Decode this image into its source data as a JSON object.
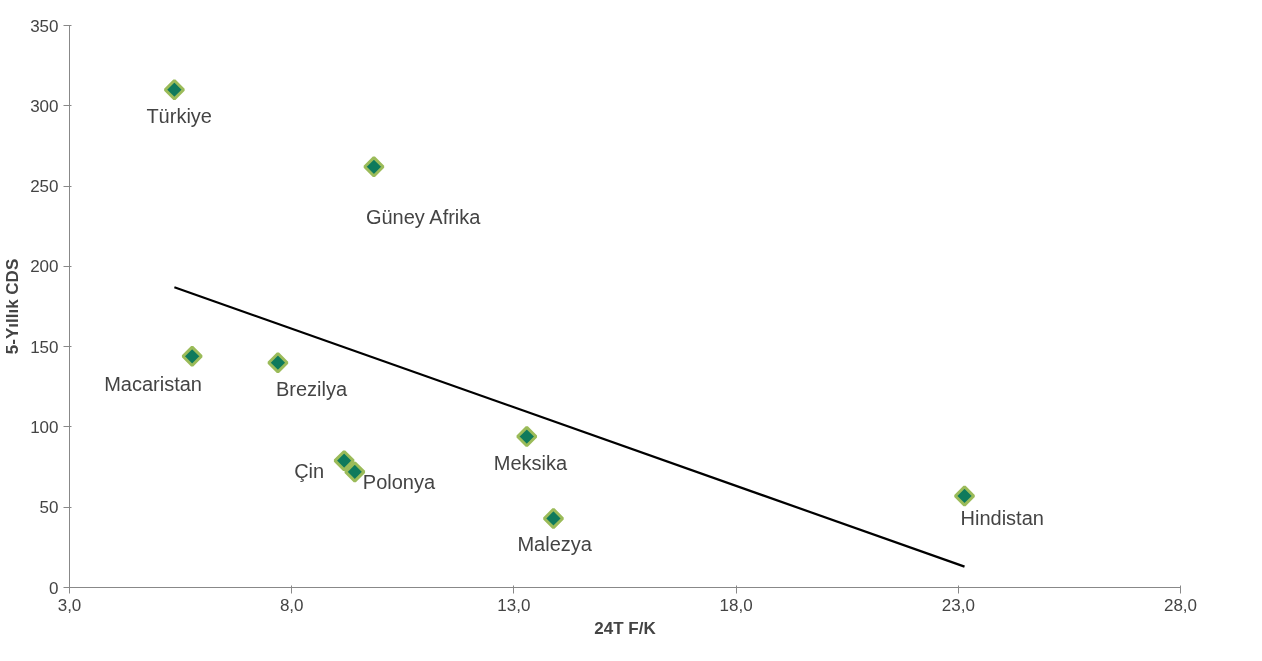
{
  "chart_data": {
    "type": "scatter",
    "xlabel": "24T F/K",
    "ylabel": "5-Yıllık CDS",
    "series": [
      {
        "marker": "diamond",
        "color": "#0f7a5c",
        "x": [
          5.36,
          9.85,
          5.76,
          7.69,
          9.18,
          9.42,
          13.29,
          13.89,
          23.14
        ],
        "values": [
          310,
          262,
          144,
          140,
          79,
          72,
          94,
          43,
          57
        ]
      },
      {
        "type": "line",
        "color": "#000000",
        "x": [
          5.36,
          23.14
        ],
        "values": [
          187,
          13
        ]
      }
    ],
    "annotations": [
      {
        "text": "Türkiye",
        "x": 5.36,
        "y": 310
      },
      {
        "text": "Güney Afrika",
        "x": 9.85,
        "y": 262
      },
      {
        "text": "Macaristan",
        "x": 5.76,
        "y": 144
      },
      {
        "text": "Brezilya",
        "x": 7.69,
        "y": 140
      },
      {
        "text": "Çin",
        "x": 9.18,
        "y": 79
      },
      {
        "text": "Polonya",
        "x": 9.42,
        "y": 72
      },
      {
        "text": "Meksika",
        "x": 13.29,
        "y": 94
      },
      {
        "text": "Malezya",
        "x": 13.89,
        "y": 43
      },
      {
        "text": "Hindistan",
        "x": 23.14,
        "y": 57
      }
    ],
    "xlim": [
      3,
      28
    ],
    "xticks": [
      {
        "value": 3,
        "label": "3,0"
      },
      {
        "value": 8,
        "label": "8,0"
      },
      {
        "value": 13,
        "label": "13,0"
      },
      {
        "value": 18,
        "label": "18,0"
      },
      {
        "value": 23,
        "label": "23,0"
      },
      {
        "value": 28,
        "label": "28,0"
      }
    ],
    "ylim": [
      0,
      350
    ],
    "yticks": [
      0,
      50,
      100,
      150,
      200,
      250,
      300,
      350
    ],
    "grid": false,
    "line_style": "solid"
  }
}
